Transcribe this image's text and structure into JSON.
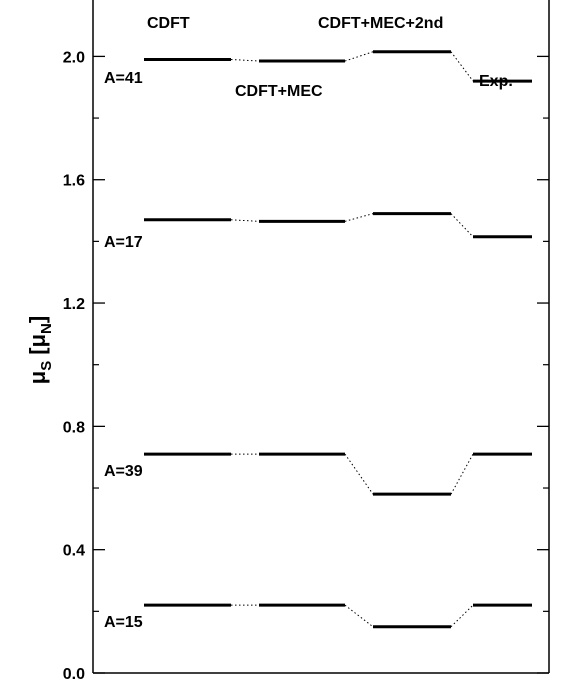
{
  "chart_data": {
    "type": "level-scheme",
    "ylabel": {
      "main": "μ",
      "sub": "S",
      "unit_open": "[μ",
      "unit_sub": "N",
      "unit_close": "]"
    },
    "ylim": [
      0.0,
      2.2
    ],
    "yticks": [
      0.0,
      0.4,
      0.8,
      1.2,
      1.6,
      2.0
    ],
    "ytick_labels": [
      "0.0",
      "0.4",
      "0.8",
      "1.2",
      "1.6",
      "2.0"
    ],
    "columns": [
      "CDFT",
      "CDFT+MEC",
      "CDFT+MEC+2nd",
      "Exp."
    ],
    "series": [
      {
        "name": "A=41",
        "values": [
          1.99,
          1.985,
          2.015,
          1.92
        ]
      },
      {
        "name": "A=17",
        "values": [
          1.47,
          1.465,
          1.49,
          1.415
        ]
      },
      {
        "name": "A=39",
        "values": [
          0.71,
          0.71,
          0.58,
          0.71
        ]
      },
      {
        "name": "A=15",
        "values": [
          0.22,
          0.22,
          0.15,
          0.22
        ]
      }
    ]
  }
}
